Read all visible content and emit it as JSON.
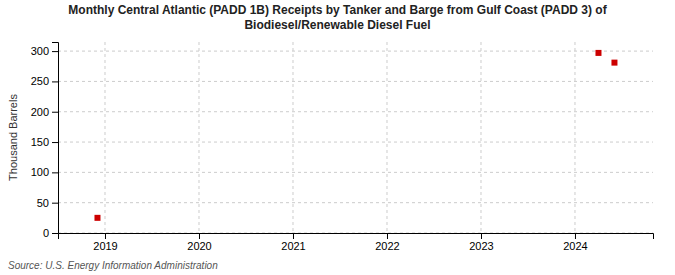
{
  "chart_data": {
    "type": "scatter",
    "title": "Monthly Central Atlantic (PADD 1B) Receipts by Tanker and Barge from Gulf Coast (PADD 3) of\nBiodiesel/Renewable Diesel Fuel",
    "ylabel": "Thousand Barrels",
    "source": "Source: U.S. Energy Information Administration",
    "x": [
      2018.92,
      2024.25,
      2024.42
    ],
    "values": [
      25,
      297,
      281
    ],
    "color": "#cc0000",
    "marker": "square",
    "xlim": [
      2018.5,
      2024.83
    ],
    "ylim": [
      0,
      315
    ],
    "xticks": [
      2019,
      2020,
      2021,
      2022,
      2023,
      2024
    ],
    "yticks": [
      0,
      50,
      100,
      150,
      200,
      250,
      300
    ],
    "grid": true
  }
}
